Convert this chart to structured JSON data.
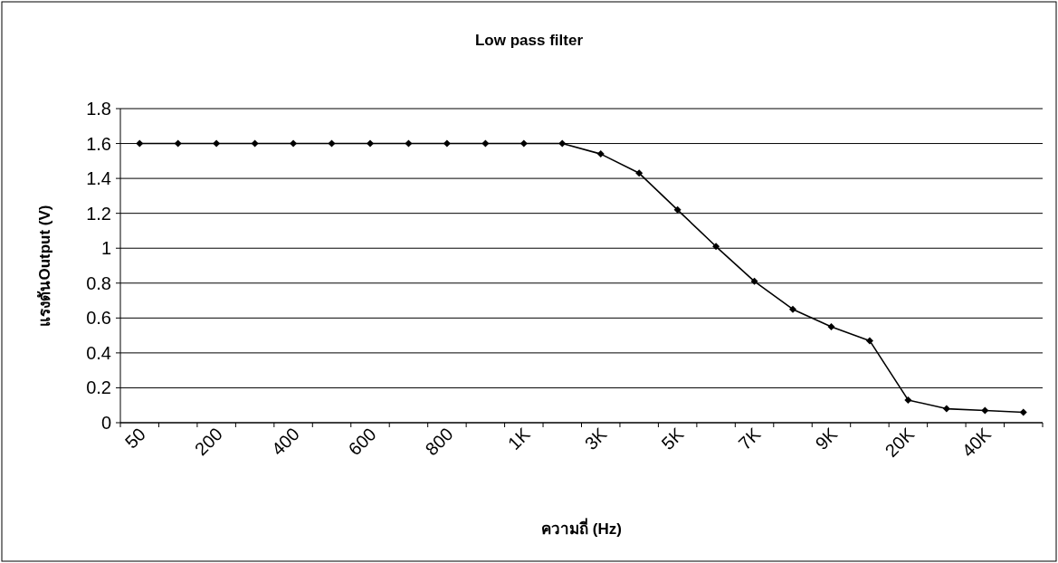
{
  "chart_data": {
    "type": "line",
    "title": "Low pass filter",
    "xlabel": "ความถี่ (Hz)",
    "ylabel": "แรงดันOutput (V)",
    "categories": [
      "50",
      null,
      "200",
      null,
      "400",
      null,
      "600",
      null,
      "800",
      null,
      "1K",
      null,
      "3K",
      null,
      "5K",
      null,
      "7K",
      null,
      "9K",
      null,
      "20K",
      null,
      "40K",
      null
    ],
    "series": [
      {
        "color": "#000000",
        "values": [
          1.6,
          1.6,
          1.6,
          1.6,
          1.6,
          1.6,
          1.6,
          1.6,
          1.6,
          1.6,
          1.6,
          1.6,
          1.54,
          1.43,
          1.22,
          1.01,
          0.81,
          0.65,
          0.55,
          0.47,
          0.13,
          0.08,
          0.07,
          0.06
        ]
      }
    ],
    "ylim": [
      0,
      1.8
    ],
    "yticks": [
      0,
      0.2,
      0.4,
      0.6,
      0.8,
      1,
      1.2,
      1.4,
      1.6,
      1.8
    ],
    "grid": "y",
    "marker": "diamond",
    "line_style": "solid"
  }
}
